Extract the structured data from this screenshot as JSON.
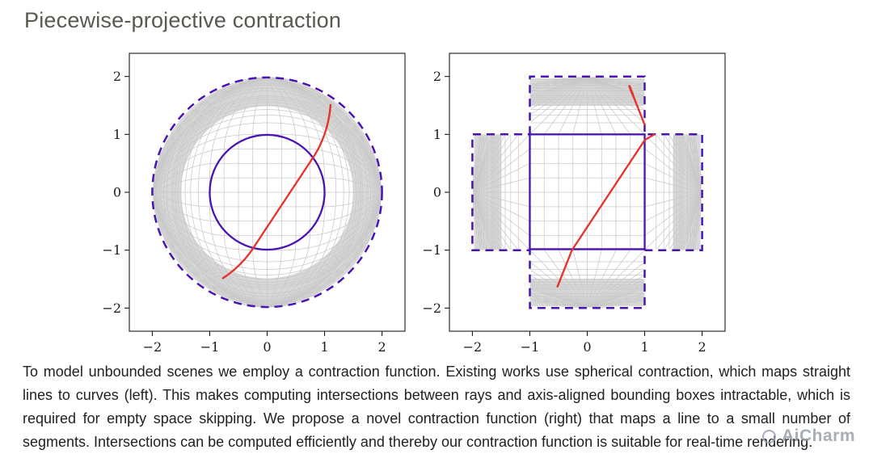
{
  "title": "Piecewise-projective contraction",
  "caption": "To model unbounded scenes we employ a contraction function. Existing works use spherical contraction, which maps straight lines to curves (left). This makes computing intersections between rays and axis-aligned bounding boxes intractable, which is required for empty space skipping. We propose a novel contraction function (right) that maps a line to a small number of segments. Intersections can be computed efficiently and thereby our contraction function is suitable for real-time rendering.",
  "watermark": {
    "icon": "circle-logo-icon",
    "text": "AiCharm"
  },
  "colors": {
    "purple": "#4a14b0",
    "red": "#e5322a",
    "grid": "#c8c8c8",
    "band": "#d8d8d8",
    "axis": "#1a1a1a"
  },
  "chart_data": [
    {
      "type": "line",
      "title": "",
      "contraction": "spherical",
      "xlabel": "",
      "ylabel": "",
      "xlim": [
        -2.4,
        2.4
      ],
      "ylim": [
        -2.4,
        2.4
      ],
      "xticks": [
        -2,
        -1,
        0,
        1,
        2
      ],
      "yticks": [
        -2,
        -1,
        0,
        1,
        2
      ],
      "unit_circle_radius": 1,
      "boundary_circle_radius": 2,
      "boundary_style": "dashed",
      "shaded_band_radii": [
        1.5,
        1.97
      ],
      "grid": {
        "step": 0.25,
        "extent": 3,
        "far_lines": [
          4,
          5,
          6.5,
          8,
          10,
          14,
          20,
          32,
          60
        ]
      },
      "ray": {
        "slope": 1.5,
        "intercept": -0.6,
        "x_range": [
          -1.4,
          4.5
        ]
      }
    },
    {
      "type": "line",
      "title": "",
      "contraction": "piecewise-projective",
      "xlabel": "",
      "ylabel": "",
      "xlim": [
        -2.4,
        2.4
      ],
      "ylim": [
        -2.4,
        2.4
      ],
      "xticks": [
        -2,
        -1,
        0,
        1,
        2
      ],
      "yticks": [
        -2,
        -1,
        0,
        1,
        2
      ],
      "unit_square_half_extent": 1,
      "boundary_cross_extent": 2,
      "boundary_style": "dashed",
      "shaded_band_range": [
        1.5,
        1.97
      ],
      "grid": {
        "step": 0.25,
        "extent": 3,
        "far_lines": [
          4,
          5,
          6.5,
          8,
          10,
          14,
          20,
          32,
          60
        ]
      },
      "ray": {
        "slope": 1.5,
        "intercept": -0.6,
        "x_range": [
          -1.4,
          4.5
        ]
      }
    }
  ]
}
